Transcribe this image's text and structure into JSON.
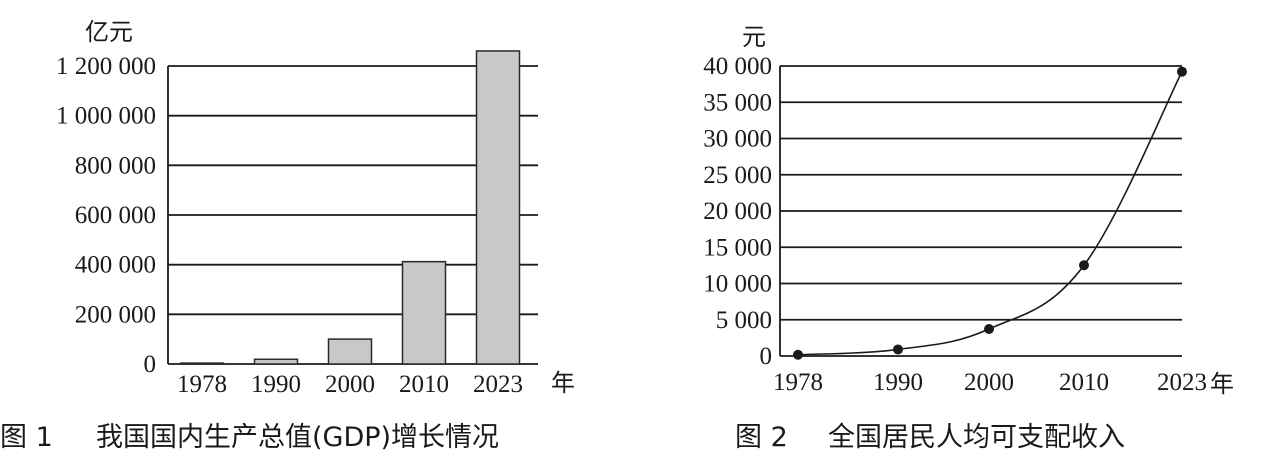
{
  "chart_data": [
    {
      "type": "bar",
      "caption_number": "图 1",
      "title": "我国国内生产总值(GDP)增长情况",
      "ylabel": "亿元",
      "xlabel": "年",
      "categories": [
        "1978",
        "1990",
        "2000",
        "2010",
        "2023"
      ],
      "values": [
        3679,
        18923,
        100280,
        412119,
        1260582
      ],
      "ylim": [
        0,
        1200000
      ],
      "yticks": [
        0,
        200000,
        400000,
        600000,
        800000,
        1000000,
        1200000
      ],
      "ytick_labels": [
        "0",
        "200 000",
        "400 000",
        "600 000",
        "800 000",
        "1 000 000",
        "1 200 000"
      ],
      "grid": true,
      "colors": {
        "bar_fill": "#c8c8c8",
        "bar_stroke": "#2a2a2a",
        "axis": "#1a1a1a"
      }
    },
    {
      "type": "line",
      "caption_number": "图 2",
      "title": "全国居民人均可支配收入",
      "ylabel": "元",
      "xlabel": "年",
      "categories": [
        "1978",
        "1990",
        "2000",
        "2010",
        "2023"
      ],
      "values": [
        171,
        904,
        3721,
        12520,
        39218
      ],
      "ylim": [
        0,
        40000
      ],
      "yticks": [
        0,
        5000,
        10000,
        15000,
        20000,
        25000,
        30000,
        35000,
        40000
      ],
      "ytick_labels": [
        "0",
        "5 000",
        "10 000",
        "15 000",
        "20 000",
        "25 000",
        "30 000",
        "35 000",
        "40 000"
      ],
      "grid": true,
      "colors": {
        "line": "#1a1a1a",
        "marker": "#1a1a1a",
        "axis": "#1a1a1a"
      }
    }
  ]
}
